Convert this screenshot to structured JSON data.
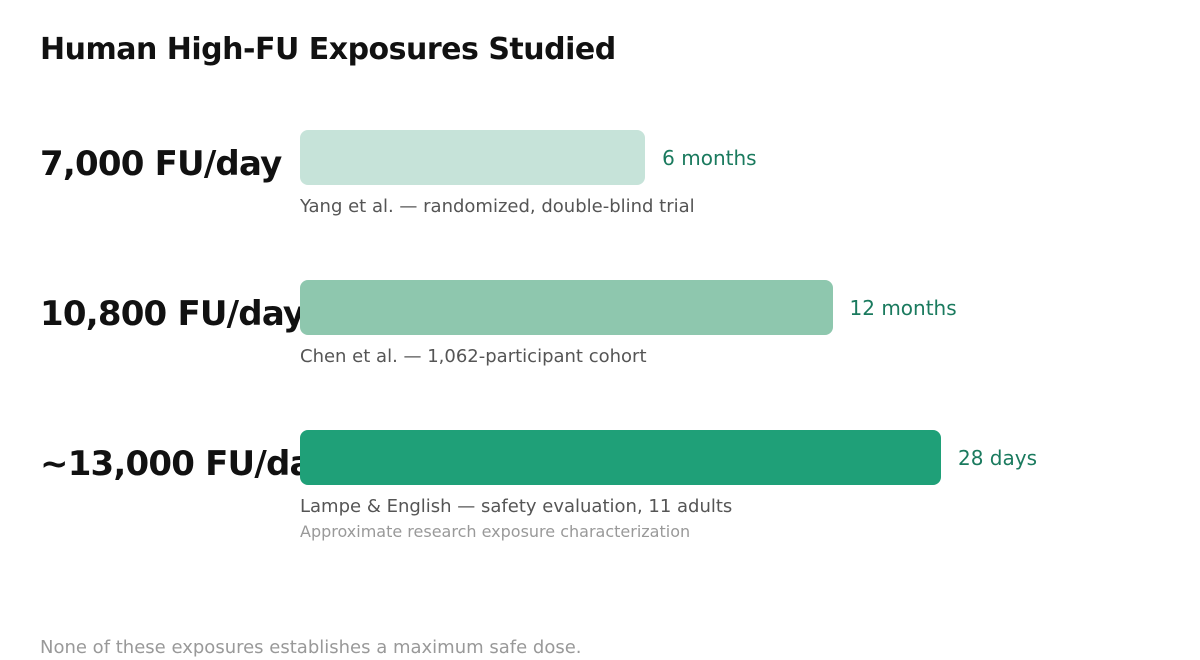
{
  "title": "Human High-FU Exposures Studied",
  "footnote": "None of these exposures establishes a maximum safe dose.",
  "colors": {
    "bar_light": "#c6e3d9",
    "bar_medium": "#8ec7ae",
    "bar_dark": "#1fa078",
    "duration_text": "#1a7a5e"
  },
  "chart_data": {
    "type": "bar",
    "orientation": "horizontal",
    "title": "Human High-FU Exposures Studied",
    "xlabel": "",
    "ylabel": "",
    "grid": false,
    "legend": "none",
    "categories": [
      "7,000 FU/day",
      "10,800 FU/day",
      "~13,000 FU/day"
    ],
    "values": [
      7000,
      10800,
      13000
    ],
    "xlim": [
      0,
      14000
    ],
    "rows": [
      {
        "dose_label": "7,000 FU/day",
        "value": 7000,
        "duration": "6 months",
        "study": "Yang et al. — randomized, double-blind trial",
        "note": "",
        "color": "#c6e3d9"
      },
      {
        "dose_label": "10,800 FU/day",
        "value": 10800,
        "duration": "12 months",
        "study": "Chen et al. — 1,062-participant cohort",
        "note": "",
        "color": "#8ec7ae"
      },
      {
        "dose_label": "~13,000 FU/day",
        "value": 13000,
        "duration": "28 days",
        "study": "Lampe & English — safety evaluation, 11 adults",
        "note": "Approximate research exposure characterization",
        "color": "#1fa078"
      }
    ]
  }
}
